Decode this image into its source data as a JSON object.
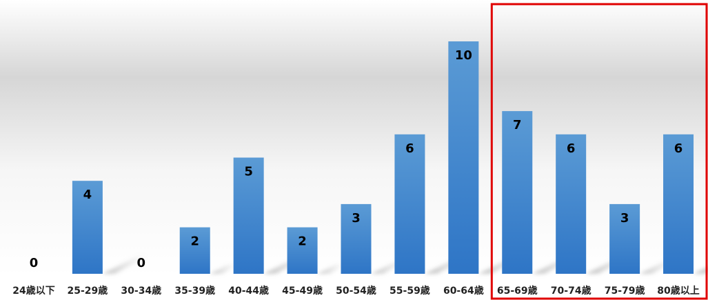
{
  "chart_data": {
    "type": "bar",
    "title": "",
    "xlabel": "",
    "ylabel": "",
    "categories": [
      "24歳以下",
      "25-29歳",
      "30-34歳",
      "35-39歳",
      "40-44歳",
      "45-49歳",
      "50-54歳",
      "55-59歳",
      "60-64歳",
      "65-69歳",
      "70-74歳",
      "75-79歳",
      "80歳以上"
    ],
    "values": [
      0,
      4,
      0,
      2,
      5,
      2,
      3,
      6,
      10,
      7,
      6,
      3,
      6
    ],
    "data_labels": [
      "0",
      "4",
      "0",
      "2",
      "5",
      "2",
      "3",
      "6",
      "10",
      "7",
      "6",
      "3",
      "6"
    ],
    "ylim": [
      0,
      10
    ],
    "grid": false,
    "legend": "none",
    "highlight": {
      "from_category": "65-69歳",
      "to_category": "80歳以上",
      "color": "#e00000"
    },
    "colors": {
      "bar_top": "#5b9bd5",
      "bar_bottom": "#2e75c6",
      "label_text": "#000000"
    }
  }
}
